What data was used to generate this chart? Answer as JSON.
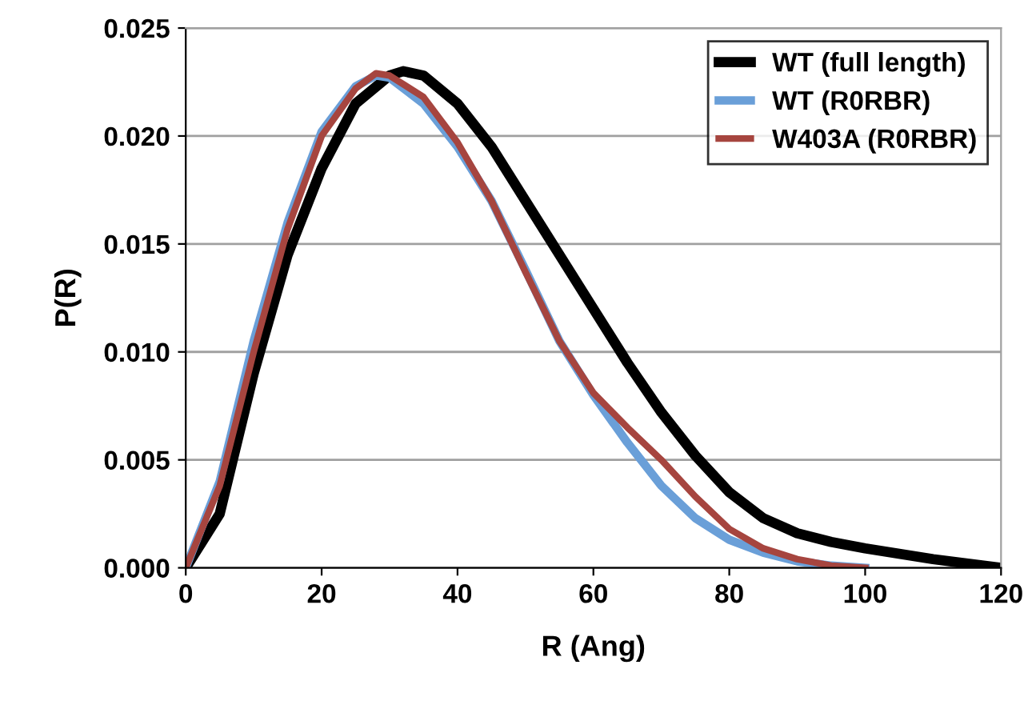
{
  "chart_data": {
    "type": "line",
    "xlabel": "R (Ang)",
    "ylabel": "P(R)",
    "xlim": [
      0,
      120
    ],
    "xticks": [
      0,
      20,
      40,
      60,
      80,
      100,
      120
    ],
    "ylim": [
      0,
      0.025
    ],
    "yticks": [
      {
        "value": 0,
        "label": "0.000"
      },
      {
        "value": 0.005,
        "label": "0.005"
      },
      {
        "value": 0.01,
        "label": "0.010"
      },
      {
        "value": 0.015,
        "label": "0.015"
      },
      {
        "value": 0.02,
        "label": "0.020"
      },
      {
        "value": 0.025,
        "label": "0.025"
      }
    ],
    "grid": "y",
    "legend": "top right",
    "marker": "none",
    "line_style": "solid",
    "series": [
      {
        "name": "WT (full length)",
        "color": "#000000",
        "x": [
          0,
          5,
          10,
          15,
          20,
          25,
          30,
          32,
          35,
          40,
          45,
          50,
          55,
          60,
          65,
          70,
          75,
          80,
          85,
          90,
          95,
          100,
          110,
          120
        ],
        "values": [
          0,
          0.0025,
          0.009,
          0.0145,
          0.0185,
          0.0215,
          0.0228,
          0.023,
          0.0228,
          0.0215,
          0.0195,
          0.017,
          0.0145,
          0.012,
          0.0095,
          0.0072,
          0.0052,
          0.0035,
          0.0023,
          0.0016,
          0.0012,
          0.0009,
          0.0004,
          0
        ]
      },
      {
        "name": "WT (R0RBR)",
        "color": "#6a9fd8",
        "x": [
          0,
          5,
          10,
          15,
          20,
          25,
          28,
          30,
          35,
          40,
          45,
          50,
          55,
          60,
          65,
          70,
          75,
          80,
          85,
          90,
          95,
          100
        ],
        "values": [
          0,
          0.004,
          0.0105,
          0.016,
          0.0202,
          0.0223,
          0.0228,
          0.0227,
          0.0215,
          0.0195,
          0.017,
          0.0138,
          0.0105,
          0.008,
          0.0058,
          0.0038,
          0.0023,
          0.0013,
          0.0007,
          0.0003,
          0.0001,
          0
        ]
      },
      {
        "name": "W403A (R0RBR)",
        "color": "#a6453f",
        "x": [
          0,
          5,
          10,
          15,
          20,
          25,
          28,
          30,
          35,
          40,
          45,
          50,
          55,
          60,
          65,
          70,
          75,
          80,
          85,
          90,
          95,
          100
        ],
        "values": [
          0,
          0.0038,
          0.01,
          0.0157,
          0.02,
          0.0222,
          0.0229,
          0.0228,
          0.0218,
          0.0197,
          0.017,
          0.0137,
          0.0105,
          0.0081,
          0.0065,
          0.005,
          0.0033,
          0.0018,
          0.0009,
          0.0004,
          0.0001,
          0
        ]
      }
    ]
  }
}
